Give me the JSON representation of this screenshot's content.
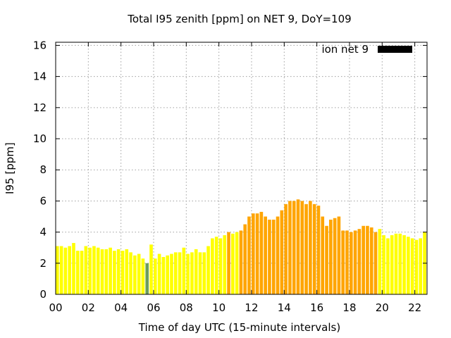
{
  "chart_data": {
    "type": "bar",
    "title": "Total I95 zenith [ppm] on NET 9, DoY=109",
    "xlabel": "Time of day UTC (15-minute intervals)",
    "ylabel": "I95 [ppm]",
    "xlim": [
      0,
      22.75
    ],
    "ylim": [
      0,
      16.2
    ],
    "grid": true,
    "legend_position": "top-right",
    "bar_width_hours": 0.2,
    "x_ticks": [
      0,
      2,
      4,
      6,
      8,
      10,
      12,
      14,
      16,
      18,
      20,
      22
    ],
    "x_tick_labels": [
      "00",
      "02",
      "04",
      "06",
      "08",
      "10",
      "12",
      "14",
      "16",
      "18",
      "20",
      "22"
    ],
    "y_ticks": [
      0,
      2,
      4,
      6,
      8,
      10,
      12,
      14,
      16
    ],
    "y_tick_labels": [
      "0",
      "2",
      "4",
      "6",
      "8",
      "10",
      "12",
      "14",
      "16"
    ],
    "series": [
      {
        "name": "ion net 9",
        "legend_color": "#000000",
        "x": [
          0.0,
          0.25,
          0.5,
          0.75,
          1.0,
          1.25,
          1.5,
          1.75,
          2.0,
          2.25,
          2.5,
          2.75,
          3.0,
          3.25,
          3.5,
          3.75,
          4.0,
          4.25,
          4.5,
          4.75,
          5.0,
          5.25,
          5.5,
          5.75,
          6.0,
          6.25,
          6.5,
          6.75,
          7.0,
          7.25,
          7.5,
          7.75,
          8.0,
          8.25,
          8.5,
          8.75,
          9.0,
          9.25,
          9.5,
          9.75,
          10.0,
          10.25,
          10.5,
          10.75,
          11.0,
          11.25,
          11.5,
          11.75,
          12.0,
          12.25,
          12.5,
          12.75,
          13.0,
          13.25,
          13.5,
          13.75,
          14.0,
          14.25,
          14.5,
          14.75,
          15.0,
          15.25,
          15.5,
          15.75,
          16.0,
          16.25,
          16.5,
          16.75,
          17.0,
          17.25,
          17.5,
          17.75,
          18.0,
          18.25,
          18.5,
          18.75,
          19.0,
          19.25,
          19.5,
          19.75,
          20.0,
          20.25,
          20.5,
          20.75,
          21.0,
          21.25,
          21.5,
          21.75,
          22.0,
          22.25,
          22.5,
          22.75
        ],
        "values": [
          3.1,
          3.1,
          3.0,
          3.1,
          3.3,
          2.8,
          2.8,
          3.1,
          3.0,
          3.1,
          3.0,
          2.9,
          2.9,
          3.0,
          2.8,
          2.9,
          2.8,
          2.9,
          2.7,
          2.5,
          2.6,
          2.3,
          2.0,
          3.2,
          2.3,
          2.6,
          2.4,
          2.5,
          2.6,
          2.7,
          2.7,
          3.0,
          2.6,
          2.7,
          2.9,
          2.7,
          2.7,
          3.1,
          3.6,
          3.7,
          3.6,
          3.8,
          4.0,
          3.9,
          4.0,
          4.1,
          4.5,
          5.0,
          5.2,
          5.2,
          5.3,
          5.0,
          4.8,
          4.8,
          5.0,
          5.4,
          5.8,
          6.0,
          6.0,
          6.1,
          6.0,
          5.8,
          6.0,
          5.8,
          5.7,
          5.0,
          4.4,
          4.8,
          4.9,
          5.0,
          4.1,
          4.1,
          4.0,
          4.1,
          4.2,
          4.4,
          4.4,
          4.3,
          4.0,
          4.2,
          3.8,
          3.6,
          3.8,
          3.9,
          3.9,
          3.8,
          3.7,
          3.6,
          3.5,
          3.6,
          4.0,
          3.6
        ],
        "colors": [
          "#ffff00",
          "#ffff00",
          "#ffff00",
          "#ffff00",
          "#ffff00",
          "#ffff00",
          "#ffff00",
          "#ffff00",
          "#ffff00",
          "#ffff00",
          "#ffff00",
          "#ffff00",
          "#ffff00",
          "#ffff00",
          "#ffff00",
          "#ffff00",
          "#ffff00",
          "#ffff00",
          "#ffff00",
          "#ffff00",
          "#ffff00",
          "#ffff00",
          "#6b9d5b",
          "#ffff00",
          "#ffff00",
          "#ffff00",
          "#ffff00",
          "#ffff00",
          "#ffff00",
          "#ffff00",
          "#ffff00",
          "#ffff00",
          "#ffff00",
          "#ffff00",
          "#ffff00",
          "#ffff00",
          "#ffff00",
          "#ffff00",
          "#ffff00",
          "#ffff00",
          "#ffff00",
          "#ffff00",
          "#ffa500",
          "#ffff00",
          "#ffff00",
          "#ffa500",
          "#ffa500",
          "#ffa500",
          "#ffa500",
          "#ffa500",
          "#ffa500",
          "#ffa500",
          "#ffa500",
          "#ffa500",
          "#ffa500",
          "#ffa500",
          "#ffa500",
          "#ffa500",
          "#ffa500",
          "#ffa500",
          "#ffa500",
          "#ffa500",
          "#ffa500",
          "#ffa500",
          "#ffa500",
          "#ffa500",
          "#ffa500",
          "#ffa500",
          "#ffa500",
          "#ffa500",
          "#ffa500",
          "#ffa500",
          "#ffa500",
          "#ffa500",
          "#ffa500",
          "#ffa500",
          "#ffa500",
          "#ffa500",
          "#ffa500",
          "#ffff00",
          "#ffff00",
          "#ffff00",
          "#ffff00",
          "#ffff00",
          "#ffff00",
          "#ffff00",
          "#ffff00",
          "#ffff00",
          "#ffff00",
          "#ffff00",
          "#ffff00",
          "#ffa500"
        ]
      }
    ]
  }
}
